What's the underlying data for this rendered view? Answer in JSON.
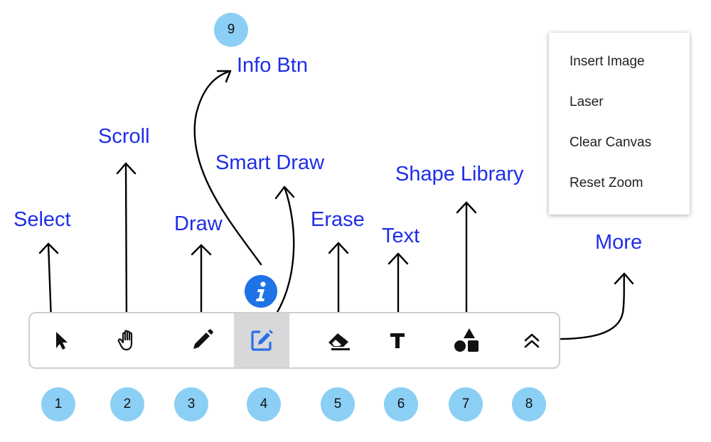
{
  "labels": {
    "select": "Select",
    "scroll": "Scroll",
    "draw": "Draw",
    "smart_draw": "Smart Draw",
    "erase": "Erase",
    "text": "Text",
    "shape_library": "Shape Library",
    "more": "More",
    "info_btn": "Info Btn"
  },
  "numbers": {
    "n1": "1",
    "n2": "2",
    "n3": "3",
    "n4": "4",
    "n5": "5",
    "n6": "6",
    "n7": "7",
    "n8": "8",
    "n9": "9"
  },
  "menu": {
    "items": [
      "Insert Image",
      "Laser",
      "Clear Canvas",
      "Reset Zoom"
    ]
  },
  "toolbar": {
    "tools": [
      "select",
      "scroll",
      "draw",
      "smart-draw",
      "erase",
      "text",
      "shape-library",
      "more"
    ],
    "active": "smart-draw"
  },
  "colors": {
    "label_blue": "#1f2ee8",
    "number_circle": "#8ccff5",
    "info_blue": "#1e73e6",
    "active_tool_bg": "#d8d8da"
  }
}
